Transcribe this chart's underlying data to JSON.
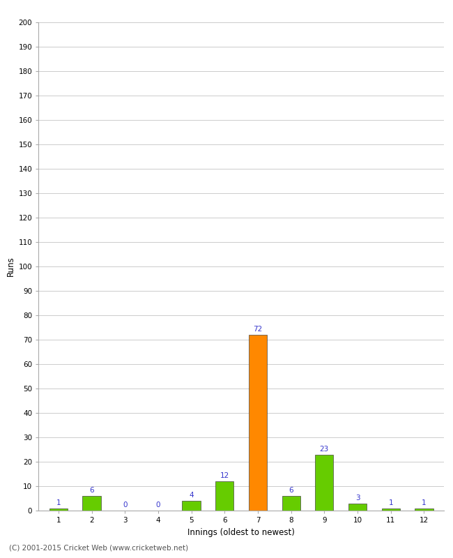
{
  "categories": [
    1,
    2,
    3,
    4,
    5,
    6,
    7,
    8,
    9,
    10,
    11,
    12
  ],
  "values": [
    1,
    6,
    0,
    0,
    4,
    12,
    72,
    6,
    23,
    3,
    1,
    1
  ],
  "bar_colors": [
    "#66cc00",
    "#66cc00",
    "#66cc00",
    "#66cc00",
    "#66cc00",
    "#66cc00",
    "#ff8800",
    "#66cc00",
    "#66cc00",
    "#66cc00",
    "#66cc00",
    "#66cc00"
  ],
  "xlabel": "Innings (oldest to newest)",
  "ylabel": "Runs",
  "ylim": [
    0,
    200
  ],
  "yticks": [
    0,
    10,
    20,
    30,
    40,
    50,
    60,
    70,
    80,
    90,
    100,
    110,
    120,
    130,
    140,
    150,
    160,
    170,
    180,
    190,
    200
  ],
  "label_color": "#3333cc",
  "label_fontsize": 7.5,
  "axis_label_fontsize": 8.5,
  "tick_fontsize": 7.5,
  "footer": "(C) 2001-2015 Cricket Web (www.cricketweb.net)",
  "footer_fontsize": 7.5,
  "background_color": "#ffffff",
  "grid_color": "#cccccc"
}
